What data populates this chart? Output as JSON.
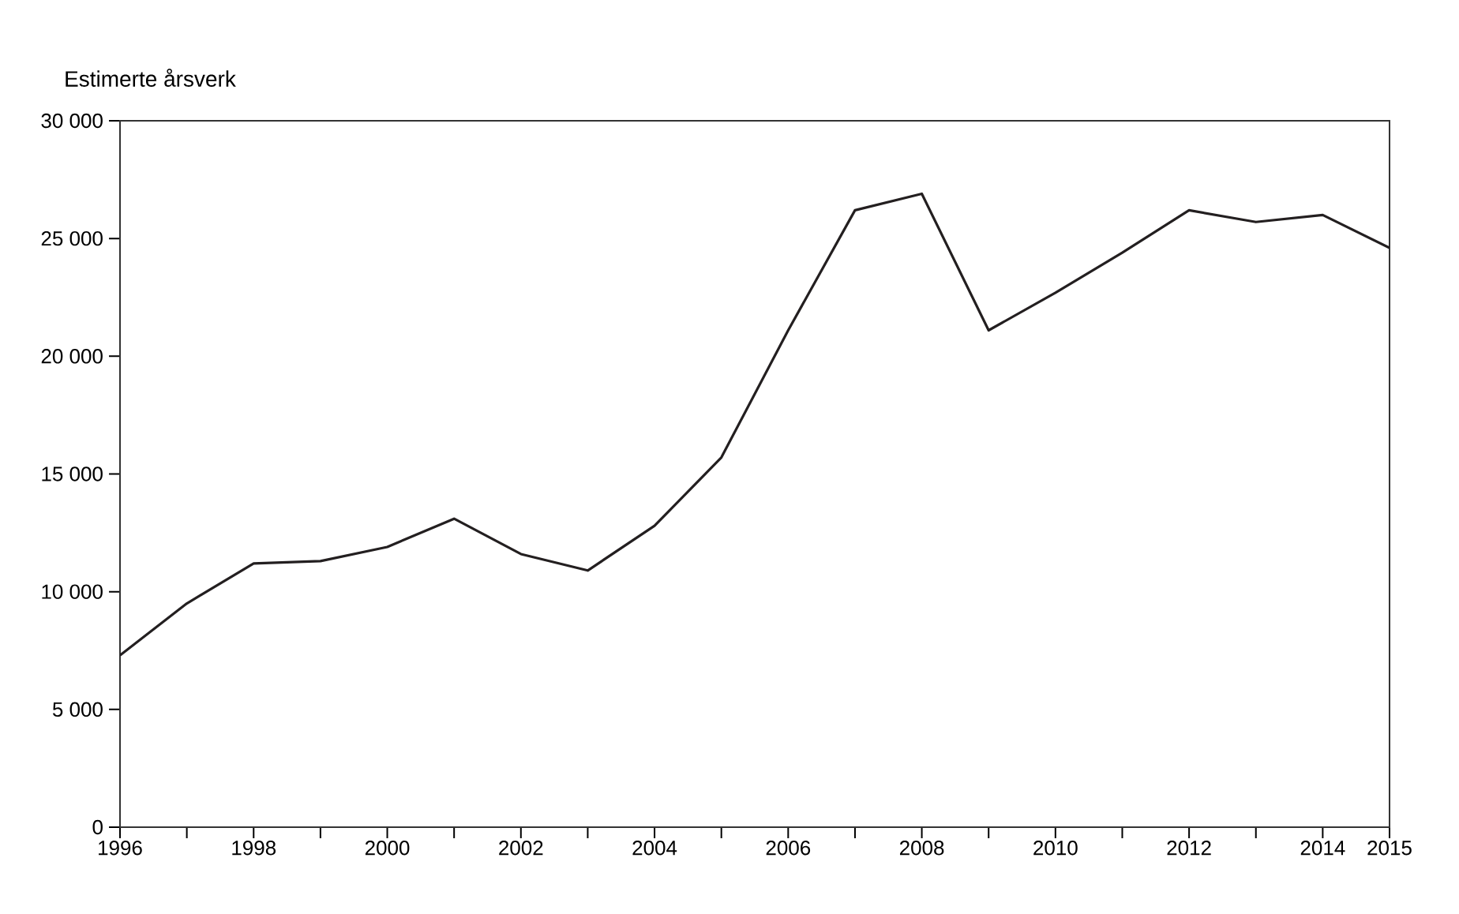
{
  "chart_data": {
    "type": "line",
    "ylabel": "Estimerte årsverk",
    "x": [
      1996,
      1997,
      1998,
      1999,
      2000,
      2001,
      2002,
      2003,
      2004,
      2005,
      2006,
      2007,
      2008,
      2009,
      2010,
      2011,
      2012,
      2013,
      2014,
      2015
    ],
    "series": [
      {
        "color": "#231f20",
        "values": [
          7300,
          9500,
          11200,
          11300,
          11900,
          13100,
          11600,
          10900,
          12800,
          15700,
          21100,
          26200,
          26900,
          21100,
          22700,
          24400,
          26200,
          25700,
          26000,
          24600
        ]
      }
    ],
    "xlim": [
      1996,
      2015
    ],
    "xticks": [
      1996,
      {
        "value": 1997,
        "label": null
      },
      1998,
      {
        "value": 1999,
        "label": null
      },
      2000,
      {
        "value": 2001,
        "label": null
      },
      2002,
      {
        "value": 2003,
        "label": null
      },
      2004,
      {
        "value": 2005,
        "label": null
      },
      2006,
      {
        "value": 2007,
        "label": null
      },
      2008,
      {
        "value": 2009,
        "label": null
      },
      2010,
      {
        "value": 2011,
        "label": null
      },
      2012,
      {
        "value": 2013,
        "label": null
      },
      2014,
      2015
    ],
    "ylim": [
      0,
      30000
    ],
    "yticks": [
      0,
      {
        "value": 5000,
        "label": "5 000"
      },
      {
        "value": 10000,
        "label": "10 000"
      },
      {
        "value": 15000,
        "label": "15 000"
      },
      {
        "value": 20000,
        "label": "20 000"
      },
      {
        "value": 25000,
        "label": "25 000"
      },
      {
        "value": 30000,
        "label": "30 000"
      }
    ],
    "line_style": "solid",
    "marker": "none"
  }
}
